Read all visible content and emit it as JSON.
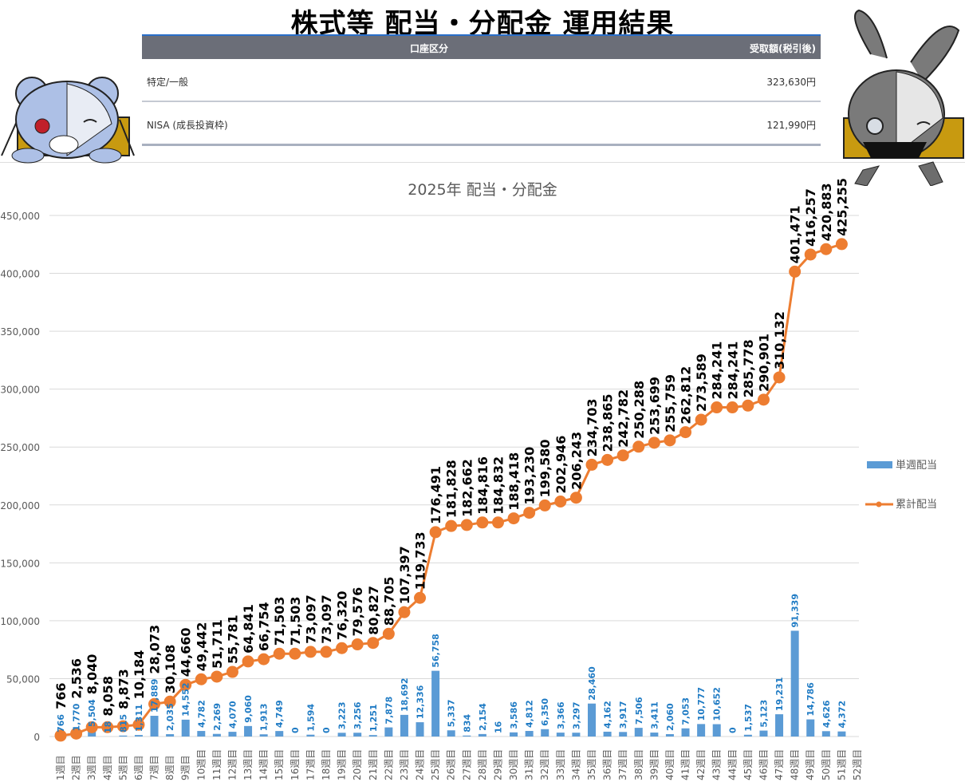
{
  "header": {
    "title": "株式等 配当・分配金 運用結果"
  },
  "table": {
    "columns": [
      "口座区分",
      "受取額(税引後)"
    ],
    "rows": [
      {
        "account": "特定/一般",
        "amount": "323,630円"
      },
      {
        "account": "NISA (成長投資枠)",
        "amount": "121,990円"
      }
    ]
  },
  "chart_data": {
    "type": "bar+line",
    "title": "2025年 配当・分配金",
    "ylim": [
      0,
      450000
    ],
    "yticks": [
      0,
      50000,
      100000,
      150000,
      200000,
      250000,
      300000,
      350000,
      400000,
      450000
    ],
    "ytick_labels": [
      "0",
      "50,000",
      "100,000",
      "150,000",
      "200,000",
      "250,000",
      "300,000",
      "350,000",
      "400,000",
      "450,000"
    ],
    "grid": true,
    "legend_position": "right",
    "categories": [
      "1週目",
      "2週目",
      "3週目",
      "4週目",
      "5週目",
      "6週目",
      "7週目",
      "8週目",
      "9週目",
      "10週目",
      "11週目",
      "12週目",
      "13週目",
      "14週目",
      "15週目",
      "16週目",
      "17週目",
      "18週目",
      "19週目",
      "20週目",
      "21週目",
      "22週目",
      "23週目",
      "24週目",
      "25週目",
      "26週目",
      "27週目",
      "28週目",
      "29週目",
      "30週目",
      "31週目",
      "32週目",
      "33週目",
      "34週目",
      "35週目",
      "36週目",
      "37週目",
      "38週目",
      "39週目",
      "40週目",
      "41週目",
      "42週目",
      "43週目",
      "44週目",
      "45週目",
      "46週目",
      "47週目",
      "48週目",
      "49週目",
      "50週目",
      "51週目",
      "52週目"
    ],
    "series": [
      {
        "name": "単週配当",
        "type": "bar",
        "color": "#5b9bd5",
        "values": [
          766,
          1770,
          5504,
          18,
          815,
          1311,
          17889,
          2035,
          14552,
          4782,
          2269,
          4070,
          9060,
          1913,
          4749,
          0,
          1594,
          0,
          3223,
          3256,
          1251,
          7878,
          18692,
          12336,
          56758,
          5337,
          834,
          2154,
          16,
          3586,
          4812,
          6350,
          3366,
          3297,
          28460,
          4162,
          3917,
          7506,
          3411,
          2060,
          7053,
          10777,
          10652,
          0,
          1537,
          5123,
          19231,
          91339,
          14786,
          4626,
          4372,
          null
        ]
      },
      {
        "name": "累計配当",
        "type": "line",
        "color": "#ed7d31",
        "values": [
          766,
          2536,
          8040,
          8058,
          8873,
          10184,
          28073,
          30108,
          44660,
          49442,
          51711,
          55781,
          64841,
          66754,
          71503,
          71503,
          73097,
          73097,
          76320,
          79576,
          80827,
          88705,
          107397,
          119733,
          176491,
          181828,
          182662,
          184816,
          184832,
          188418,
          193230,
          199580,
          202946,
          206243,
          234703,
          238865,
          242782,
          250288,
          253699,
          255759,
          262812,
          273589,
          284241,
          284241,
          285778,
          290901,
          310132,
          401471,
          416257,
          420883,
          425255,
          null
        ]
      }
    ]
  }
}
